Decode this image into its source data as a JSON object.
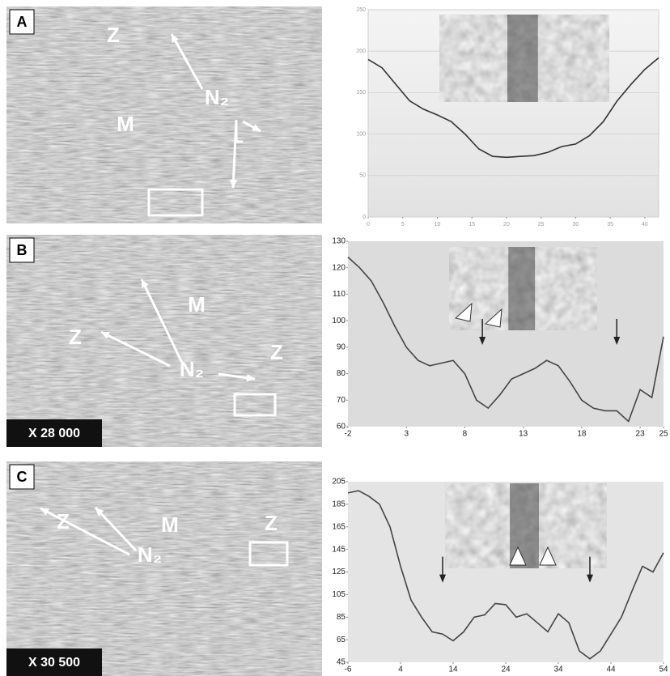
{
  "micrographs": [
    {
      "label": "A",
      "annotations": [
        "Z",
        "N₂",
        "M"
      ]
    },
    {
      "label": "B",
      "annotations": [
        "Z",
        "M",
        "Z",
        "N₂"
      ],
      "magnification": "X 28 000"
    },
    {
      "label": "C",
      "annotations": [
        "Z",
        "M",
        "Z",
        "N₂"
      ],
      "magnification": "X 30 500"
    }
  ],
  "chart_data": [
    {
      "type": "line",
      "color": "#333333",
      "x": [
        0,
        2,
        4,
        6,
        8,
        10,
        12,
        14,
        16,
        18,
        20,
        22,
        24,
        26,
        28,
        30,
        32,
        34,
        36,
        38,
        40,
        42
      ],
      "values": [
        190,
        180,
        160,
        140,
        130,
        123,
        115,
        100,
        82,
        73,
        72,
        73,
        74,
        78,
        85,
        88,
        98,
        115,
        140,
        160,
        178,
        192
      ],
      "xlim": [
        0,
        42
      ],
      "xticks": [
        0,
        5,
        10,
        15,
        20,
        25,
        30,
        35,
        40
      ],
      "ylim": [
        0,
        250
      ],
      "yticks": [
        0,
        50,
        100,
        150,
        200,
        250
      ],
      "grid": true
    },
    {
      "type": "line",
      "color": "#444444",
      "x": [
        -2,
        -1,
        0,
        1,
        2,
        3,
        4,
        5,
        6,
        7,
        8,
        9,
        10,
        11,
        12,
        13,
        14,
        15,
        16,
        17,
        18,
        19,
        20,
        21,
        22,
        23,
        24,
        25
      ],
      "values": [
        124,
        120,
        115,
        107,
        98,
        90,
        85,
        83,
        84,
        85,
        80,
        70,
        67,
        72,
        78,
        80,
        82,
        85,
        83,
        77,
        70,
        67,
        66,
        66,
        62,
        74,
        71,
        94
      ],
      "xlim": [
        -2,
        25
      ],
      "xticks": [
        -2,
        3,
        8,
        13,
        18,
        23,
        25
      ],
      "ylim": [
        60,
        130
      ],
      "yticks": [
        60,
        70,
        80,
        90,
        100,
        110,
        120,
        130
      ],
      "grid": false
    },
    {
      "type": "line",
      "color": "#444444",
      "x": [
        -6,
        -4,
        -2,
        0,
        2,
        4,
        6,
        8,
        10,
        12,
        14,
        16,
        18,
        20,
        22,
        24,
        26,
        28,
        30,
        32,
        34,
        36,
        38,
        40,
        42,
        44,
        46,
        48,
        50,
        52,
        54
      ],
      "values": [
        195,
        197,
        192,
        185,
        165,
        130,
        100,
        85,
        72,
        70,
        64,
        72,
        85,
        87,
        97,
        96,
        85,
        88,
        80,
        72,
        88,
        80,
        55,
        48,
        55,
        70,
        85,
        108,
        130,
        125,
        142
      ],
      "xlim": [
        -6,
        54
      ],
      "xticks": [
        -6,
        4,
        14,
        24,
        34,
        44,
        54
      ],
      "ylim": [
        45,
        205
      ],
      "yticks": [
        45,
        65,
        85,
        105,
        125,
        145,
        165,
        185,
        205
      ],
      "grid": false
    }
  ]
}
